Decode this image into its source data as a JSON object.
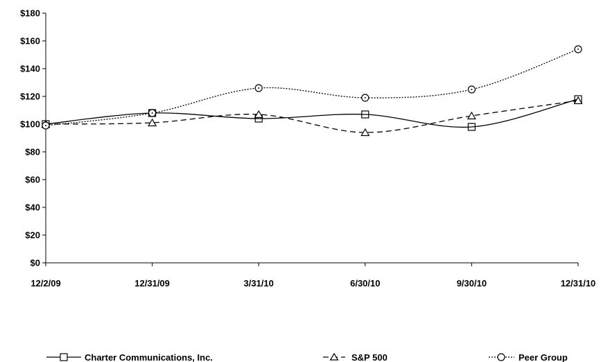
{
  "chart_data": {
    "type": "line",
    "categories": [
      "12/2/09",
      "12/31/09",
      "3/31/10",
      "6/30/10",
      "9/30/10",
      "12/31/10"
    ],
    "ylim": [
      0,
      180
    ],
    "yticks": [
      0,
      20,
      40,
      60,
      80,
      100,
      120,
      140,
      160,
      180
    ],
    "ytick_labels": [
      "$0",
      "$20",
      "$40",
      "$60",
      "$80",
      "$100",
      "$120",
      "$140",
      "$160",
      "$180"
    ],
    "grid": false,
    "legend_position": "bottom",
    "series": [
      {
        "name": "Charter Communications, Inc.",
        "values": [
          100,
          108,
          104,
          107,
          98,
          118
        ],
        "line_style": "solid",
        "marker": "square",
        "color": "#000000"
      },
      {
        "name": "S&P 500",
        "values": [
          100,
          101,
          107,
          94,
          106,
          117
        ],
        "line_style": "dashed",
        "marker": "triangle",
        "color": "#000000"
      },
      {
        "name": "Peer Group",
        "values": [
          99,
          108,
          126,
          119,
          125,
          154
        ],
        "line_style": "dotted",
        "marker": "circle",
        "color": "#000000"
      }
    ]
  }
}
